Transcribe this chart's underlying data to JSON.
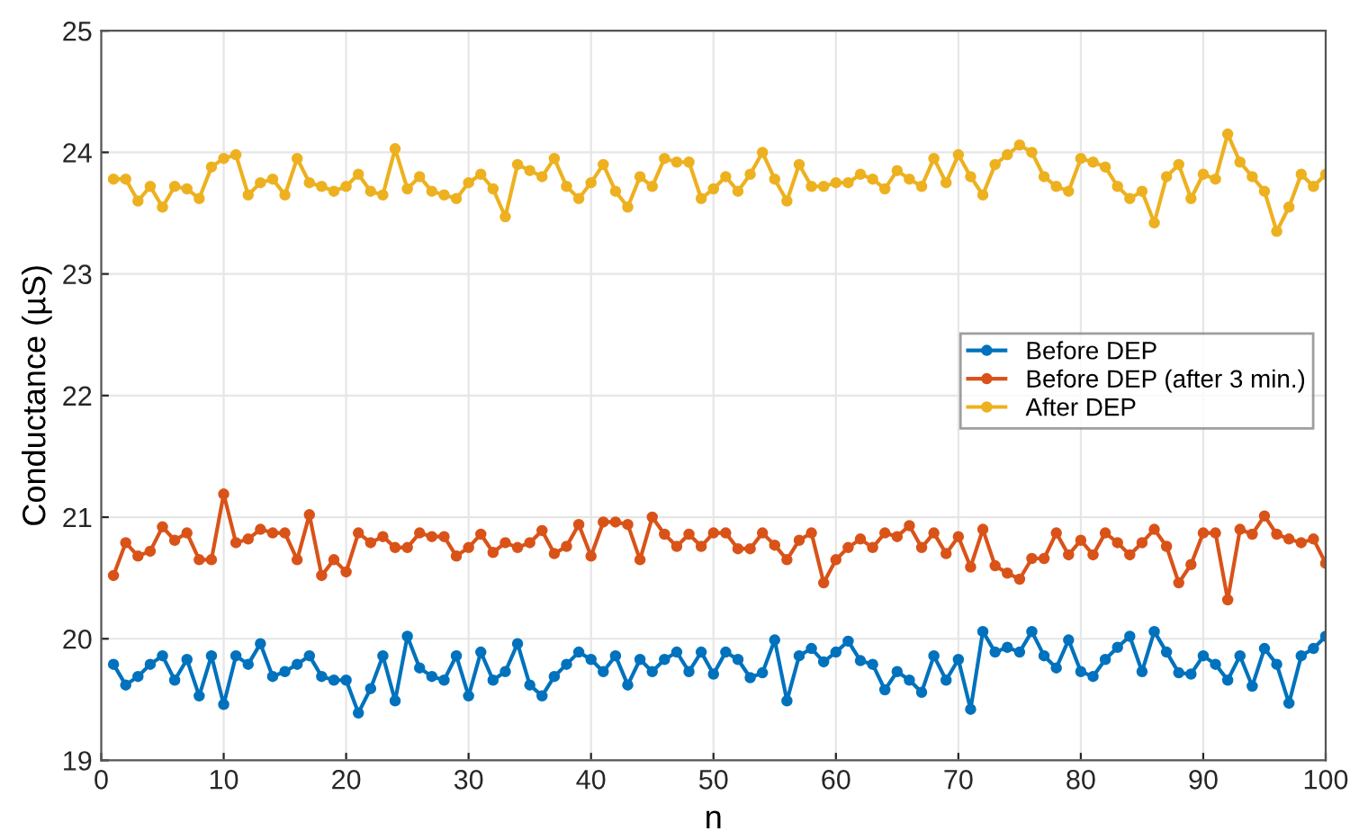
{
  "chart_data": {
    "type": "line",
    "xlabel": "n",
    "ylabel": "Conductance (µS)",
    "xlim": [
      0,
      100
    ],
    "xticks": [
      0,
      10,
      20,
      30,
      40,
      50,
      60,
      70,
      80,
      90,
      100
    ],
    "ylim": [
      19,
      25
    ],
    "yticks": [
      19,
      20,
      21,
      22,
      23,
      24,
      25
    ],
    "grid": true,
    "legend": "right",
    "marker": "circle",
    "line_style": "solid",
    "x": [
      1,
      2,
      3,
      4,
      5,
      6,
      7,
      8,
      9,
      10,
      11,
      12,
      13,
      14,
      15,
      16,
      17,
      18,
      19,
      20,
      21,
      22,
      23,
      24,
      25,
      26,
      27,
      28,
      29,
      30,
      31,
      32,
      33,
      34,
      35,
      36,
      37,
      38,
      39,
      40,
      41,
      42,
      43,
      44,
      45,
      46,
      47,
      48,
      49,
      50,
      51,
      52,
      53,
      54,
      55,
      56,
      57,
      58,
      59,
      60,
      61,
      62,
      63,
      64,
      65,
      66,
      67,
      68,
      69,
      70,
      71,
      72,
      73,
      74,
      75,
      76,
      77,
      78,
      79,
      80,
      81,
      82,
      83,
      84,
      85,
      86,
      87,
      88,
      89,
      90,
      91,
      92,
      93,
      94,
      95,
      96,
      97,
      98,
      99,
      100
    ],
    "series": [
      {
        "name": "Before DEP",
        "color": "#0072bd",
        "values": [
          19.79,
          19.62,
          19.69,
          19.79,
          19.86,
          19.66,
          19.83,
          19.53,
          19.86,
          19.46,
          19.86,
          19.79,
          19.96,
          19.69,
          19.73,
          19.79,
          19.86,
          19.69,
          19.66,
          19.66,
          19.39,
          19.59,
          19.86,
          19.49,
          20.02,
          19.76,
          19.69,
          19.66,
          19.86,
          19.53,
          19.89,
          19.66,
          19.73,
          19.96,
          19.62,
          19.53,
          19.69,
          19.79,
          19.89,
          19.83,
          19.73,
          19.86,
          19.62,
          19.83,
          19.73,
          19.83,
          19.89,
          19.73,
          19.89,
          19.71,
          19.89,
          19.83,
          19.68,
          19.72,
          19.99,
          19.49,
          19.86,
          19.92,
          19.81,
          19.89,
          19.98,
          19.82,
          19.79,
          19.58,
          19.73,
          19.66,
          19.56,
          19.86,
          19.66,
          19.83,
          19.42,
          20.06,
          19.89,
          19.93,
          19.89,
          20.06,
          19.86,
          19.76,
          19.99,
          19.73,
          19.69,
          19.83,
          19.93,
          20.02,
          19.73,
          20.06,
          19.89,
          19.72,
          19.71,
          19.86,
          19.79,
          19.66,
          19.86,
          19.61,
          19.92,
          19.79,
          19.47,
          19.86,
          19.92,
          20.02
        ]
      },
      {
        "name": "Before DEP (after 3 min.)",
        "color": "#d95319",
        "values": [
          20.52,
          20.79,
          20.68,
          20.72,
          20.92,
          20.81,
          20.87,
          20.65,
          20.65,
          21.19,
          20.79,
          20.82,
          20.9,
          20.87,
          20.87,
          20.65,
          21.02,
          20.52,
          20.65,
          20.55,
          20.87,
          20.79,
          20.84,
          20.75,
          20.75,
          20.87,
          20.84,
          20.84,
          20.68,
          20.75,
          20.86,
          20.71,
          20.79,
          20.75,
          20.79,
          20.89,
          20.7,
          20.76,
          20.94,
          20.68,
          20.96,
          20.96,
          20.94,
          20.65,
          21.0,
          20.86,
          20.76,
          20.86,
          20.76,
          20.87,
          20.87,
          20.74,
          20.74,
          20.87,
          20.77,
          20.65,
          20.81,
          20.87,
          20.46,
          20.65,
          20.75,
          20.82,
          20.75,
          20.87,
          20.84,
          20.93,
          20.75,
          20.87,
          20.7,
          20.84,
          20.59,
          20.9,
          20.6,
          20.54,
          20.49,
          20.66,
          20.66,
          20.87,
          20.69,
          20.81,
          20.69,
          20.87,
          20.79,
          20.69,
          20.79,
          20.9,
          20.76,
          20.46,
          20.61,
          20.87,
          20.87,
          20.32,
          20.9,
          20.86,
          21.01,
          20.86,
          20.82,
          20.79,
          20.82,
          20.62
        ]
      },
      {
        "name": "After DEP",
        "color": "#edb120",
        "values": [
          23.78,
          23.78,
          23.6,
          23.72,
          23.55,
          23.72,
          23.7,
          23.62,
          23.88,
          23.95,
          23.98,
          23.65,
          23.75,
          23.78,
          23.65,
          23.95,
          23.75,
          23.72,
          23.68,
          23.72,
          23.82,
          23.68,
          23.65,
          24.03,
          23.7,
          23.8,
          23.68,
          23.65,
          23.62,
          23.75,
          23.82,
          23.7,
          23.47,
          23.9,
          23.85,
          23.8,
          23.95,
          23.72,
          23.62,
          23.75,
          23.9,
          23.68,
          23.55,
          23.8,
          23.72,
          23.95,
          23.92,
          23.92,
          23.62,
          23.7,
          23.8,
          23.68,
          23.82,
          24.0,
          23.78,
          23.6,
          23.9,
          23.72,
          23.72,
          23.75,
          23.75,
          23.82,
          23.78,
          23.7,
          23.85,
          23.78,
          23.72,
          23.95,
          23.75,
          23.98,
          23.8,
          23.65,
          23.9,
          23.98,
          24.06,
          24.0,
          23.8,
          23.72,
          23.68,
          23.95,
          23.92,
          23.88,
          23.72,
          23.62,
          23.68,
          23.42,
          23.8,
          23.9,
          23.62,
          23.82,
          23.78,
          24.15,
          23.92,
          23.8,
          23.68,
          23.35,
          23.55,
          23.82,
          23.72,
          23.82
        ]
      }
    ]
  }
}
